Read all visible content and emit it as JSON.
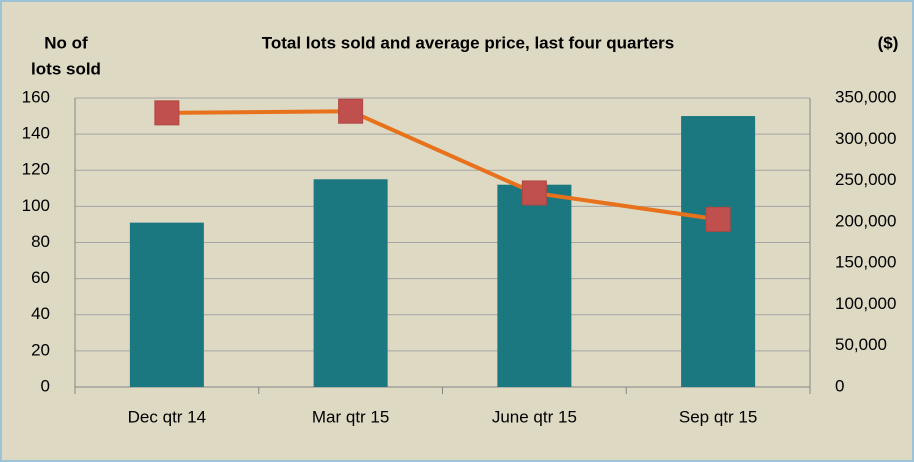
{
  "chart_data": {
    "type": "bar-line",
    "title": "Total lots sold and average price, last four quarters",
    "y_label": [
      "No of",
      "lots sold"
    ],
    "y2_label": "($)",
    "categories": [
      "Dec qtr 14",
      "Mar qtr 15",
      "June qtr 15",
      "Sep qtr 15"
    ],
    "series": [
      {
        "name": "Lots sold",
        "type": "bar",
        "color": "#1b7880",
        "values": [
          91,
          115,
          112,
          150
        ]
      },
      {
        "name": "Average price",
        "type": "line",
        "axis": "y2",
        "color": "#e8711b",
        "marker_color": "#c0504d",
        "values": [
          332000,
          334000,
          235000,
          203000
        ]
      }
    ],
    "ylim": [
      0,
      160
    ],
    "yticks": [
      0,
      20,
      40,
      60,
      80,
      100,
      120,
      140,
      160
    ],
    "y2lim": [
      0,
      350000
    ],
    "y2ticks": [
      0,
      {
        "value": 50000,
        "label": "50,000"
      },
      {
        "value": 100000,
        "label": "100,000"
      },
      {
        "value": 150000,
        "label": "150,000"
      },
      {
        "value": 200000,
        "label": "200,000"
      },
      {
        "value": 250000,
        "label": "250,000"
      },
      {
        "value": 300000,
        "label": "300,000"
      },
      {
        "value": 350000,
        "label": "350,000"
      }
    ],
    "grid": true
  }
}
